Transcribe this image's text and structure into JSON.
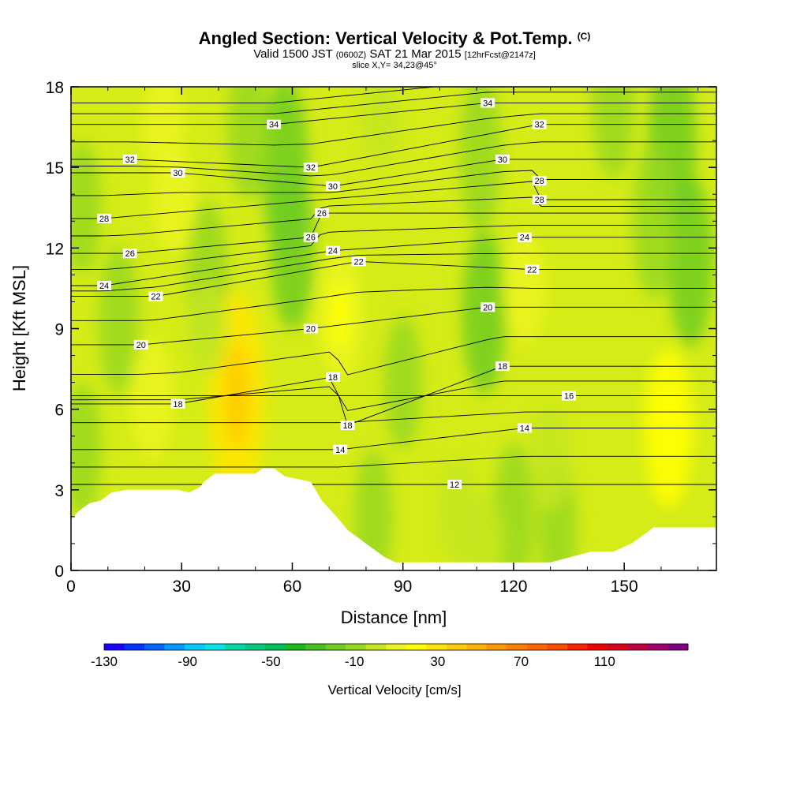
{
  "header": {
    "title": "Angled Section: Vertical Velocity & Pot.Temp.",
    "title_unit": "(C)",
    "valid_prefix": "Valid 1500 JST",
    "valid_utc": "(0600Z)",
    "valid_date": "SAT 21 Mar 2015",
    "forecast": "[12hrFcst@2147z]",
    "slice": "slice X,Y= 34,23@45°"
  },
  "chart_data": {
    "type": "heatmap",
    "xlabel": "Distance [nm]",
    "ylabel": "Height [Kft MSL]",
    "xlim": [
      0,
      175
    ],
    "ylim": [
      0,
      18
    ],
    "x_ticks": [
      0,
      30,
      60,
      90,
      120,
      150
    ],
    "y_ticks": [
      0,
      3,
      6,
      9,
      12,
      15,
      18
    ],
    "colorbar": {
      "label": "Vertical Velocity [cm/s]",
      "tick_labels": [
        -130,
        -90,
        -50,
        -10,
        30,
        70,
        110
      ],
      "range": [
        -130,
        150
      ],
      "step": 10,
      "colors": [
        "#1a00ff",
        "#0033ff",
        "#0066ff",
        "#0099ff",
        "#00ccff",
        "#00e5e5",
        "#00d9a6",
        "#00cc80",
        "#00c05a",
        "#1fb81f",
        "#48c020",
        "#70cc20",
        "#98d820",
        "#c4e620",
        "#ecf420",
        "#ffff00",
        "#ffe600",
        "#ffcc00",
        "#ffb300",
        "#ff9900",
        "#ff8000",
        "#ff6600",
        "#ff4d00",
        "#ff2200",
        "#f00000",
        "#d9001a",
        "#c00040",
        "#a0006a",
        "#800080"
      ]
    },
    "terrain_kft": {
      "x": [
        0,
        2,
        5,
        8,
        11,
        15,
        25,
        29,
        32,
        35,
        36,
        39,
        50,
        52,
        55,
        58,
        65,
        68,
        72,
        75,
        80,
        85,
        88,
        95,
        120,
        130,
        141,
        147,
        152,
        158,
        175
      ],
      "y": [
        1.9,
        2.2,
        2.5,
        2.6,
        2.9,
        3.0,
        3.0,
        3.0,
        2.9,
        3.1,
        3.3,
        3.6,
        3.6,
        3.8,
        3.8,
        3.5,
        3.3,
        2.6,
        2.0,
        1.5,
        1.0,
        0.5,
        0.3,
        0.3,
        0.3,
        0.3,
        0.7,
        0.7,
        1.0,
        1.6,
        1.6
      ]
    },
    "isentropes_c": {
      "levels": [
        12,
        14,
        16,
        18,
        20,
        22,
        24,
        26,
        28,
        30,
        32,
        34
      ],
      "labels": [
        {
          "value": "34",
          "x": 55,
          "y": 16.6
        },
        {
          "value": "34",
          "x": 113,
          "y": 17.4
        },
        {
          "value": "32",
          "x": 16,
          "y": 15.3
        },
        {
          "value": "32",
          "x": 65,
          "y": 15.0
        },
        {
          "value": "32",
          "x": 127,
          "y": 16.6
        },
        {
          "value": "30",
          "x": 29,
          "y": 14.8
        },
        {
          "value": "30",
          "x": 71,
          "y": 14.3
        },
        {
          "value": "30",
          "x": 117,
          "y": 15.3
        },
        {
          "value": "28",
          "x": 9,
          "y": 13.1
        },
        {
          "value": "28",
          "x": 127,
          "y": 14.5
        },
        {
          "value": "28",
          "x": 127,
          "y": 13.8
        },
        {
          "value": "26",
          "x": 16,
          "y": 11.8
        },
        {
          "value": "26",
          "x": 68,
          "y": 13.3
        },
        {
          "value": "26",
          "x": 65,
          "y": 12.4
        },
        {
          "value": "24",
          "x": 9,
          "y": 10.6
        },
        {
          "value": "24",
          "x": 71,
          "y": 11.9
        },
        {
          "value": "24",
          "x": 123,
          "y": 12.4
        },
        {
          "value": "22",
          "x": 23,
          "y": 10.2
        },
        {
          "value": "22",
          "x": 78,
          "y": 11.5
        },
        {
          "value": "22",
          "x": 125,
          "y": 11.2
        },
        {
          "value": "20",
          "x": 19,
          "y": 8.4
        },
        {
          "value": "20",
          "x": 65,
          "y": 9.0
        },
        {
          "value": "20",
          "x": 113,
          "y": 9.8
        },
        {
          "value": "18",
          "x": 29,
          "y": 6.2
        },
        {
          "value": "18",
          "x": 71,
          "y": 7.2
        },
        {
          "value": "18",
          "x": 117,
          "y": 7.6
        },
        {
          "value": "18",
          "x": 75,
          "y": 5.4
        },
        {
          "value": "16",
          "x": 135,
          "y": 6.5
        },
        {
          "value": "14",
          "x": 73,
          "y": 4.5
        },
        {
          "value": "14",
          "x": 123,
          "y": 5.3
        },
        {
          "value": "12",
          "x": 104,
          "y": 3.2
        }
      ]
    },
    "updraft_cores": [
      {
        "x": 45,
        "y": 6.5,
        "w": 34
      },
      {
        "x": 162,
        "y": 5.3,
        "w": 22
      },
      {
        "x": 73,
        "y": 9.5,
        "w": 15
      },
      {
        "x": 22,
        "y": 6.4,
        "w": 13
      },
      {
        "x": 25,
        "y": 16.5,
        "w": 10
      },
      {
        "x": 28,
        "y": 13.8,
        "w": 10
      },
      {
        "x": 123,
        "y": 10.5,
        "w": 11
      },
      {
        "x": 130,
        "y": 4.2,
        "w": 9
      },
      {
        "x": 105,
        "y": 2.2,
        "w": 9
      },
      {
        "x": 112,
        "y": 1.0,
        "w": 7
      },
      {
        "x": 37,
        "y": 9.0,
        "w": 7
      },
      {
        "x": 84,
        "y": 17.0,
        "w": 8
      }
    ],
    "downdraft_bands": [
      {
        "x": 13,
        "y": 9.3,
        "w": -9
      },
      {
        "x": 58,
        "y": 15.0,
        "w": -13
      },
      {
        "x": 60,
        "y": 12.0,
        "w": -11
      },
      {
        "x": 48,
        "y": 16.5,
        "w": -9
      },
      {
        "x": 37,
        "y": 11.0,
        "w": -9
      },
      {
        "x": 112,
        "y": 9.6,
        "w": -11
      },
      {
        "x": 111,
        "y": 15.5,
        "w": -10
      },
      {
        "x": 120,
        "y": 2.0,
        "w": -9
      },
      {
        "x": 132,
        "y": 1.6,
        "w": -7
      },
      {
        "x": 163,
        "y": 16.0,
        "w": -14
      },
      {
        "x": 168,
        "y": 11.5,
        "w": -12
      },
      {
        "x": 158,
        "y": 13.0,
        "w": -10
      },
      {
        "x": 147,
        "y": 17.5,
        "w": -10
      },
      {
        "x": 90,
        "y": 7.0,
        "w": -7
      },
      {
        "x": 82,
        "y": 2.0,
        "w": -7
      },
      {
        "x": 3,
        "y": 13.5,
        "w": -7
      },
      {
        "x": 3,
        "y": 4.5,
        "w": -7
      }
    ]
  }
}
